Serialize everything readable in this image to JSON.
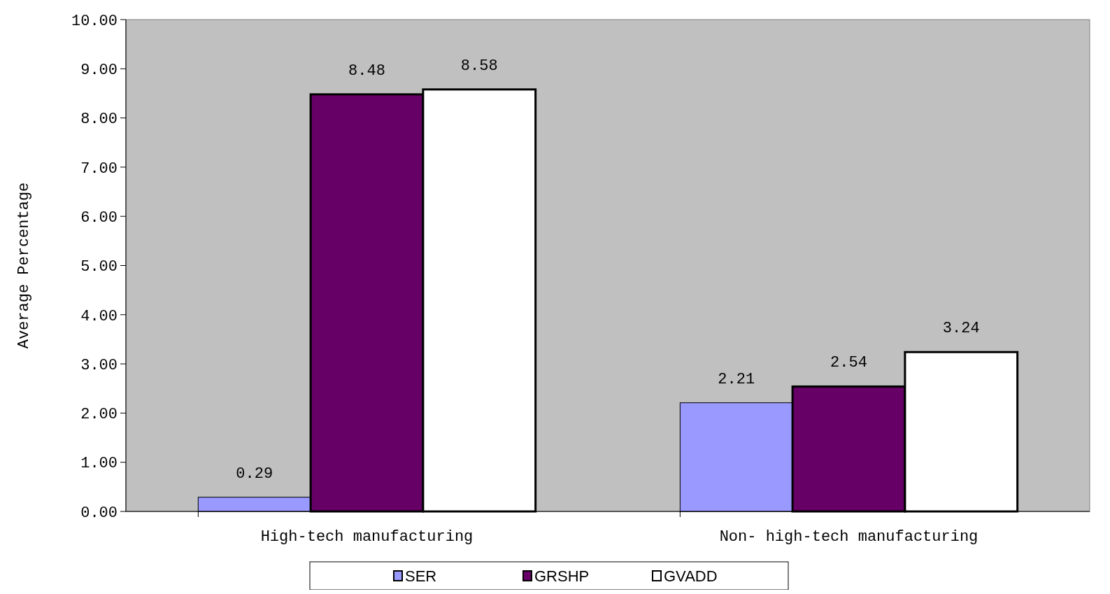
{
  "chart_data": {
    "type": "bar",
    "ylabel": "Average Percentage",
    "categories": [
      "High-tech manufacturing",
      "Non- high-tech manufacturing"
    ],
    "series": [
      {
        "name": "SER",
        "color": "#9999ff",
        "values": [
          0.29,
          2.21
        ]
      },
      {
        "name": "GRSHP",
        "color": "#660066",
        "values": [
          8.48,
          2.54
        ]
      },
      {
        "name": "GVADD",
        "color": "#ffffff",
        "values": [
          8.58,
          3.24
        ]
      }
    ],
    "ylim": [
      0,
      10
    ],
    "yticks": [
      {
        "value": 0,
        "label": "0.00"
      },
      {
        "value": 1,
        "label": "1.00"
      },
      {
        "value": 2,
        "label": "2.00"
      },
      {
        "value": 3,
        "label": "3.00"
      },
      {
        "value": 4,
        "label": "4.00"
      },
      {
        "value": 5,
        "label": "5.00"
      },
      {
        "value": 6,
        "label": "6.00"
      },
      {
        "value": 7,
        "label": "7.00"
      },
      {
        "value": 8,
        "label": "8.00"
      },
      {
        "value": 9,
        "label": "9.00"
      },
      {
        "value": 10,
        "label": "10.00"
      }
    ],
    "data_labels": true,
    "legend": "bottom",
    "grid": false
  }
}
